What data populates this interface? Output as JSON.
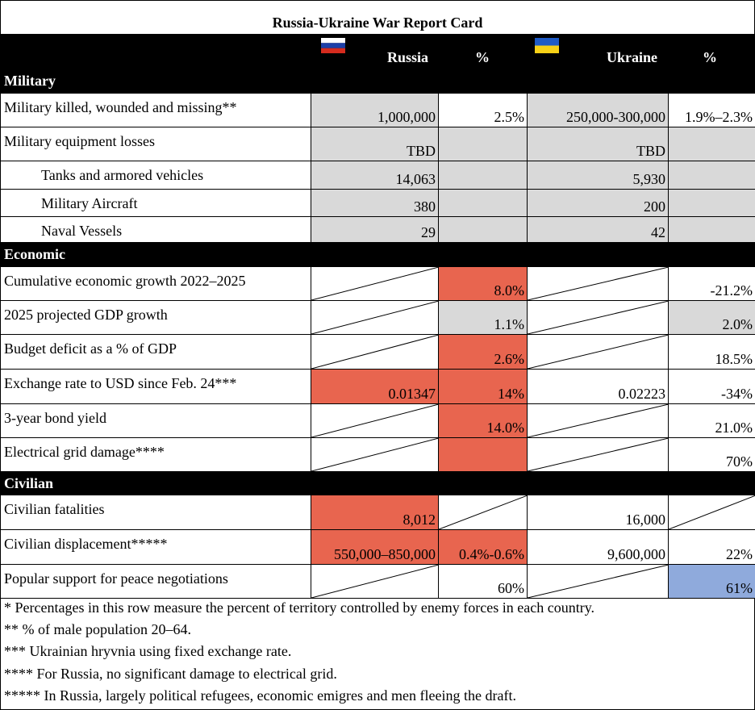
{
  "title": "Russia-Ukraine War Report Card",
  "header": {
    "russia": "Russia",
    "russia_pct": "%",
    "ukraine": "Ukraine",
    "ukraine_pct": "%"
  },
  "sections": [
    {
      "name": "Military",
      "rows": [
        {
          "label": "Military killed, wounded and missing**",
          "cells": [
            "1,000,000",
            "2.5%",
            "250,000-300,000",
            "1.9%–2.3%"
          ]
        },
        {
          "label": "Military equipment losses",
          "cells": [
            "TBD",
            null,
            "TBD",
            null
          ]
        },
        {
          "label": "Tanks and armored vehicles",
          "cells": [
            "14,063",
            null,
            "5,930",
            null
          ]
        },
        {
          "label": "Military Aircraft",
          "cells": [
            "380",
            null,
            "200",
            null
          ]
        },
        {
          "label": "Naval Vessels",
          "cells": [
            "29",
            null,
            "42",
            null
          ]
        }
      ]
    },
    {
      "name": "Economic",
      "rows": [
        {
          "label": "Cumulative economic growth 2022–2025",
          "cells": [
            null,
            "8.0%",
            null,
            "-21.2%"
          ]
        },
        {
          "label": "2025 projected GDP growth",
          "cells": [
            null,
            "1.1%",
            null,
            "2.0%"
          ]
        },
        {
          "label": "Budget deficit as a % of GDP",
          "cells": [
            null,
            "2.6%",
            null,
            "18.5%"
          ]
        },
        {
          "label": "Exchange rate to USD since Feb. 24***",
          "cells": [
            "0.01347",
            "14%",
            "0.02223",
            "-34%"
          ]
        },
        {
          "label": "3-year bond yield",
          "cells": [
            null,
            "14.0%",
            null,
            "21.0%"
          ]
        },
        {
          "label": "Electrical grid damage****",
          "cells": [
            null,
            null,
            null,
            "70%"
          ]
        }
      ]
    },
    {
      "name": "Civilian",
      "rows": [
        {
          "label": "Civilian fatalities",
          "cells": [
            "8,012",
            null,
            "16,000",
            null
          ]
        },
        {
          "label": "Civilian displacement*****",
          "cells": [
            "550,000–850,000",
            "0.4%-0.6%",
            "9,600,000",
            "22%"
          ]
        },
        {
          "label": "Popular support for peace negotiations",
          "cells": [
            null,
            "60%",
            null,
            "61%"
          ]
        }
      ]
    }
  ],
  "notes": [
    "* Percentages in this row measure the percent of territory controlled by enemy forces in each country.",
    "** % of male population 20–64.",
    "*** Ukrainian hryvnia using fixed exchange rate.",
    "**** For Russia, no significant damage to electrical grid.",
    "***** In Russia, largely political refugees, economic emigres and men fleeing the draft."
  ]
}
